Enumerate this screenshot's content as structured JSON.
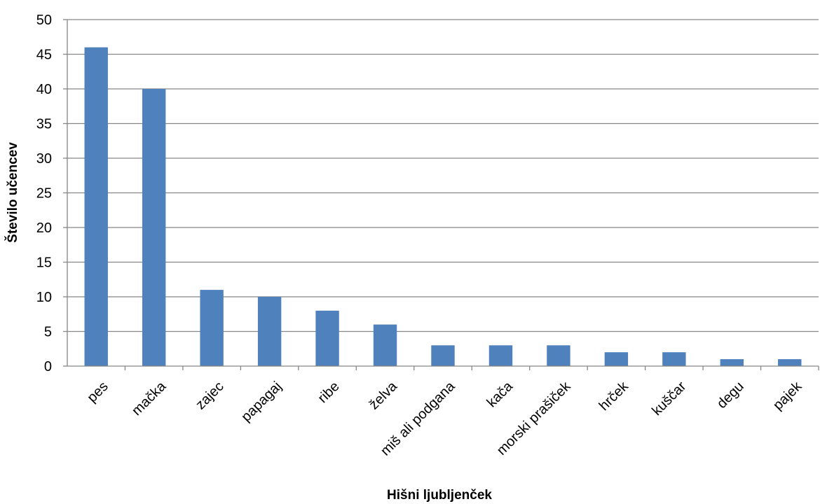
{
  "chart_data": {
    "type": "bar",
    "title": "",
    "xlabel": "Hišni ljubljenček",
    "ylabel": "Število učencev",
    "categories": [
      "pes",
      "mačka",
      "zajec",
      "papagaj",
      "ribe",
      "želva",
      "miš ali podgana",
      "kača",
      "morski prašiček",
      "hrček",
      "kuščar",
      "degu",
      "pajek"
    ],
    "values": [
      46,
      40,
      11,
      10,
      8,
      6,
      3,
      3,
      3,
      2,
      2,
      1,
      1
    ],
    "ylim": [
      0,
      50
    ],
    "yticks": [
      0,
      5,
      10,
      15,
      20,
      25,
      30,
      35,
      40,
      45,
      50
    ],
    "grid": true,
    "legend": "none",
    "colors": {
      "bar": "#4F81BD",
      "grid": "#868686",
      "axis": "#868686"
    }
  }
}
